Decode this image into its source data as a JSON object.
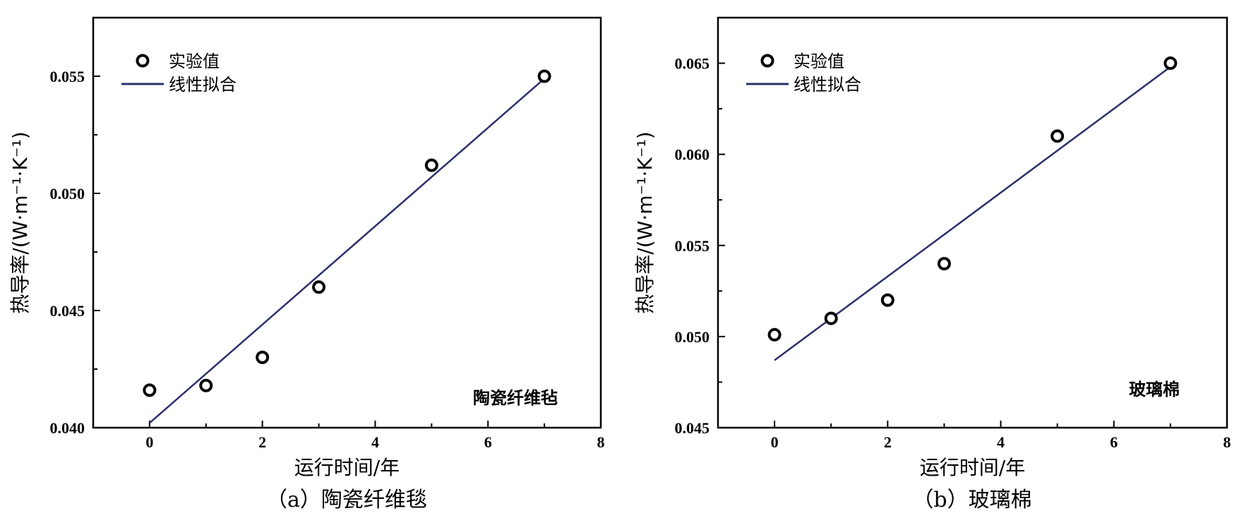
{
  "chart_data": [
    {
      "type": "scatter",
      "caption": "（a）陶瓷纤维毯",
      "annotation": "陶瓷纤维毡",
      "xlabel": "运行时间/年",
      "ylabel": "热导率/(W·m⁻¹·K⁻¹)",
      "xlim": [
        -1,
        8
      ],
      "ylim": [
        0.04,
        0.0575
      ],
      "xticks": [
        0,
        2,
        4,
        6,
        8
      ],
      "yticks": [
        0.04,
        0.045,
        0.05,
        0.055
      ],
      "ytick_labels": [
        "0.040",
        "0.045",
        "0.050",
        "0.055"
      ],
      "legend": [
        "实验值",
        "线性拟合"
      ],
      "legend_position": "top-left",
      "series": [
        {
          "name": "实验值",
          "kind": "points",
          "x": [
            0,
            1,
            2,
            3,
            5,
            7
          ],
          "y": [
            0.0416,
            0.0418,
            0.043,
            0.046,
            0.0512,
            0.055
          ]
        },
        {
          "name": "线性拟合",
          "kind": "line",
          "x": [
            0,
            7
          ],
          "y": [
            0.0402,
            0.0549
          ]
        }
      ],
      "colors": {
        "points": "#000000",
        "line": "#2b2f6b"
      },
      "grid": false
    },
    {
      "type": "scatter",
      "caption": "（b）玻璃棉",
      "annotation": "玻璃棉",
      "xlabel": "运行时间/年",
      "ylabel": "热导率/(W·m⁻¹·K⁻¹)",
      "xlim": [
        -1,
        8
      ],
      "ylim": [
        0.045,
        0.0675
      ],
      "xticks": [
        0,
        2,
        4,
        6,
        8
      ],
      "yticks": [
        0.045,
        0.05,
        0.055,
        0.06,
        0.065
      ],
      "ytick_labels": [
        "0.045",
        "0.050",
        "0.055",
        "0.060",
        "0.065"
      ],
      "legend": [
        "实验值",
        "线性拟合"
      ],
      "legend_position": "top-left",
      "series": [
        {
          "name": "实验值",
          "kind": "points",
          "x": [
            0,
            1,
            2,
            3,
            5,
            7
          ],
          "y": [
            0.0501,
            0.051,
            0.052,
            0.054,
            0.061,
            0.065
          ]
        },
        {
          "name": "线性拟合",
          "kind": "line",
          "x": [
            0,
            7
          ],
          "y": [
            0.0487,
            0.0648
          ]
        }
      ],
      "colors": {
        "points": "#000000",
        "line": "#2b2f6b"
      },
      "grid": false
    }
  ]
}
